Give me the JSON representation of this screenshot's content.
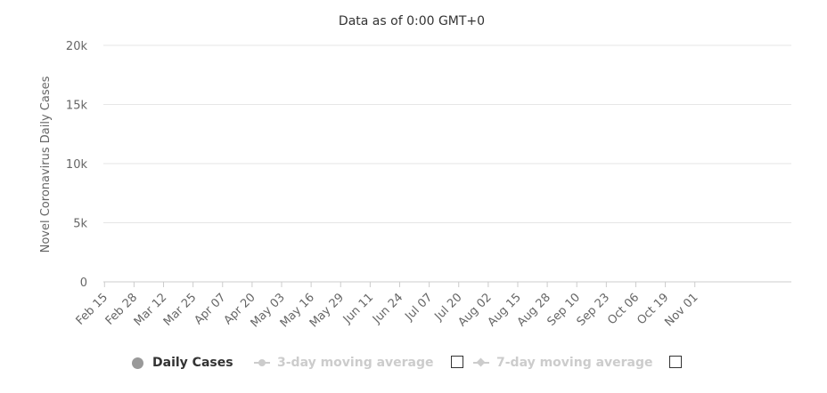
{
  "chart_data": {
    "type": "bar",
    "title": "Data as of 0:00 GMT+0",
    "ylabel": "Novel Coronavirus Daily Cases",
    "xlabel": "",
    "ylim": [
      0,
      20000
    ],
    "ytick_values": [
      0,
      5000,
      10000,
      15000,
      20000
    ],
    "ytick_labels": [
      "0",
      "5k",
      "10k",
      "15k",
      "20k"
    ],
    "xtick_labels": [
      "Feb 15",
      "Feb 28",
      "Mar 12",
      "Mar 25",
      "Apr 07",
      "Apr 20",
      "May 03",
      "May 16",
      "May 29",
      "Jun 11",
      "Jun 24",
      "Jul 07",
      "Jul 20",
      "Aug 02",
      "Aug 15",
      "Aug 28",
      "Sep 10",
      "Sep 23",
      "Oct 06",
      "Oct 19",
      "Nov 01"
    ],
    "start_label": "Feb 15",
    "grid": true,
    "legend_position": "bottom",
    "bar_color": "#999999",
    "series": [
      {
        "name": "Daily Cases",
        "values": [
          0,
          0,
          0,
          0,
          0,
          0,
          0,
          0,
          0,
          0,
          0,
          0,
          0,
          0,
          0,
          0,
          0,
          0,
          0,
          0,
          0,
          0,
          0,
          0,
          0,
          0,
          0,
          0,
          0,
          0,
          0,
          0,
          0,
          0,
          0,
          0,
          0,
          0,
          0,
          0,
          0,
          0,
          0,
          0,
          0,
          0,
          0,
          0,
          0,
          0,
          0,
          0,
          0,
          0,
          0,
          0,
          0,
          0,
          0,
          0,
          0,
          0,
          0,
          0,
          0,
          0,
          0,
          0,
          0,
          0,
          0,
          0,
          0,
          0,
          0,
          0,
          0,
          0,
          0,
          0,
          0,
          0,
          0,
          0,
          0,
          0,
          0,
          0,
          0,
          0,
          0,
          0,
          0,
          0,
          0,
          0,
          0,
          0,
          0,
          0,
          0,
          0,
          0,
          0,
          0,
          0,
          0,
          0,
          0,
          0,
          0,
          0,
          0,
          0,
          0,
          0,
          0,
          0,
          0,
          0,
          0,
          0,
          0,
          0,
          0,
          0,
          0,
          0,
          0,
          0,
          0,
          0,
          0,
          0,
          0,
          0,
          0,
          0,
          0,
          0,
          0,
          0,
          0,
          0,
          0,
          0,
          0,
          0,
          0,
          0,
          0,
          0,
          0,
          0,
          0,
          0,
          0,
          0,
          0,
          0,
          0,
          0,
          0,
          0,
          0,
          0,
          0,
          0,
          0,
          0,
          0,
          0,
          0,
          0,
          0,
          0,
          0,
          0,
          0,
          0,
          0,
          0,
          0,
          0,
          0,
          0,
          0,
          0,
          0,
          0,
          0,
          0,
          0,
          0,
          0,
          0,
          0,
          0,
          0,
          0,
          0,
          0,
          0,
          0,
          0,
          0,
          0,
          0,
          0,
          0,
          0,
          0,
          0,
          0,
          0,
          0,
          0,
          0,
          0,
          0,
          0,
          0,
          0,
          0,
          0,
          0,
          0,
          0,
          0,
          0,
          0,
          0,
          0,
          0,
          0,
          0,
          0,
          0,
          0,
          0,
          0,
          0,
          0,
          0,
          0,
          0,
          0,
          0,
          0,
          0,
          0,
          0,
          0,
          0,
          0,
          0,
          0,
          0,
          0,
          0,
          0,
          0,
          0,
          0,
          0,
          0,
          0,
          0,
          0,
          0,
          0,
          0,
          0,
          0,
          0,
          0,
          0,
          0,
          0,
          0,
          0,
          0,
          0,
          0,
          0,
          0,
          0,
          0,
          0,
          0,
          0,
          0,
          0,
          0,
          0,
          0,
          0,
          0,
          0,
          0,
          0,
          0,
          0
        ]
      }
    ]
  },
  "legend": {
    "items": [
      {
        "label": "Daily Cases",
        "active": true
      },
      {
        "label": "3-day moving average",
        "active": false
      },
      {
        "label": "7-day moving average",
        "active": false
      }
    ]
  }
}
